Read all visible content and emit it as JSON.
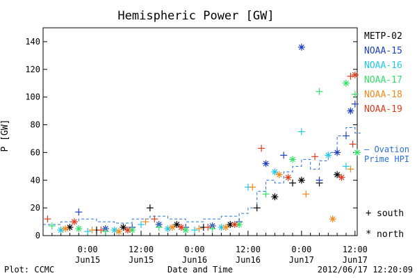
{
  "chart_data": {
    "type": "scatter",
    "title": "Hemispheric Power [GW]",
    "ylabel": "P [GW]",
    "xlabel": "Date and Time",
    "ylim": [
      0,
      150
    ],
    "y_ticks": [
      0,
      20,
      40,
      60,
      80,
      100,
      120,
      140
    ],
    "xlim": [
      "2012-06-14 14:00",
      "2012-06-17 12:30"
    ],
    "x_ticks": [
      {
        "t": "2012-06-15 00:00",
        "line1": "0:00",
        "line2": "Jun15"
      },
      {
        "t": "2012-06-15 12:00",
        "line1": "12:00",
        "line2": "Jun15"
      },
      {
        "t": "2012-06-16 00:00",
        "line1": "0:00",
        "line2": "Jun16"
      },
      {
        "t": "2012-06-16 12:00",
        "line1": "12:00",
        "line2": "Jun16"
      },
      {
        "t": "2012-06-17 00:00",
        "line1": "0:00",
        "line2": "Jun17"
      },
      {
        "t": "2012-06-17 12:00",
        "line1": "12:00",
        "line2": "Jun17"
      }
    ],
    "legend": [
      {
        "name": "METP-02",
        "color": "#000000"
      },
      {
        "name": "NOAA-15",
        "color": "#1f3fbf"
      },
      {
        "name": "NOAA-16",
        "color": "#22c8e8"
      },
      {
        "name": "NOAA-17",
        "color": "#33e066"
      },
      {
        "name": "NOAA-18",
        "color": "#f08a1c"
      },
      {
        "name": "NOAA-19",
        "color": "#e03a1a"
      }
    ],
    "ovation_label": [
      "— Ovation",
      "Prime HPI"
    ],
    "ovation_color": "#2a6fd4",
    "marker_key": [
      {
        "symbol": "+",
        "label": "south"
      },
      {
        "symbol": "*",
        "label": "north"
      }
    ],
    "ovation_series": {
      "name": "Ovation Prime HPI",
      "points": [
        [
          "2012-06-14 14:00",
          8
        ],
        [
          "2012-06-14 18:00",
          10
        ],
        [
          "2012-06-14 22:00",
          12
        ],
        [
          "2012-06-15 02:00",
          10
        ],
        [
          "2012-06-15 06:00",
          9
        ],
        [
          "2012-06-15 10:00",
          12
        ],
        [
          "2012-06-15 14:00",
          14
        ],
        [
          "2012-06-15 18:00",
          12
        ],
        [
          "2012-06-15 22:00",
          10
        ],
        [
          "2012-06-16 02:00",
          12
        ],
        [
          "2012-06-16 06:00",
          14
        ],
        [
          "2012-06-16 10:00",
          16
        ],
        [
          "2012-06-16 12:00",
          20
        ],
        [
          "2012-06-16 14:00",
          32
        ],
        [
          "2012-06-16 16:00",
          40
        ],
        [
          "2012-06-16 18:00",
          38
        ],
        [
          "2012-06-16 20:00",
          46
        ],
        [
          "2012-06-16 22:00",
          50
        ],
        [
          "2012-06-17 00:00",
          55
        ],
        [
          "2012-06-17 02:00",
          48
        ],
        [
          "2012-06-17 04:00",
          54
        ],
        [
          "2012-06-17 06:00",
          60
        ],
        [
          "2012-06-17 08:00",
          72
        ],
        [
          "2012-06-17 10:00",
          78
        ],
        [
          "2012-06-17 12:00",
          74
        ]
      ]
    },
    "series": [
      {
        "name": "METP-02",
        "points": [
          [
            "2012-06-14 20:00",
            6
          ],
          [
            "2012-06-15 02:00",
            4
          ],
          [
            "2012-06-15 08:00",
            6
          ],
          [
            "2012-06-15 14:00",
            20
          ],
          [
            "2012-06-15 20:00",
            8
          ],
          [
            "2012-06-16 02:00",
            6
          ],
          [
            "2012-06-16 08:00",
            8
          ],
          [
            "2012-06-16 14:00",
            20
          ],
          [
            "2012-06-16 18:00",
            28
          ],
          [
            "2012-06-16 22:00",
            38
          ],
          [
            "2012-06-17 00:00",
            40
          ],
          [
            "2012-06-17 04:00",
            38
          ],
          [
            "2012-06-17 08:00",
            44
          ]
        ]
      },
      {
        "name": "NOAA-15",
        "points": [
          [
            "2012-06-14 22:00",
            17
          ],
          [
            "2012-06-15 04:00",
            5
          ],
          [
            "2012-06-15 10:00",
            6
          ],
          [
            "2012-06-15 16:00",
            8
          ],
          [
            "2012-06-15 22:00",
            6
          ],
          [
            "2012-06-16 04:00",
            7
          ],
          [
            "2012-06-16 10:00",
            10
          ],
          [
            "2012-06-16 16:00",
            52
          ],
          [
            "2012-06-16 20:00",
            58
          ],
          [
            "2012-06-17 00:00",
            136
          ],
          [
            "2012-06-17 04:00",
            40
          ],
          [
            "2012-06-17 08:00",
            60
          ],
          [
            "2012-06-17 10:00",
            72
          ],
          [
            "2012-06-17 11:00",
            90
          ],
          [
            "2012-06-17 12:00",
            95
          ]
        ]
      },
      {
        "name": "NOAA-16",
        "points": [
          [
            "2012-06-14 18:00",
            4
          ],
          [
            "2012-06-15 00:00",
            3
          ],
          [
            "2012-06-15 06:00",
            4
          ],
          [
            "2012-06-15 12:00",
            8
          ],
          [
            "2012-06-15 18:00",
            5
          ],
          [
            "2012-06-16 00:00",
            4
          ],
          [
            "2012-06-16 06:00",
            6
          ],
          [
            "2012-06-16 12:00",
            35
          ],
          [
            "2012-06-16 18:00",
            46
          ],
          [
            "2012-06-17 00:00",
            75
          ],
          [
            "2012-06-17 06:00",
            58
          ],
          [
            "2012-06-17 10:00",
            50
          ]
        ]
      },
      {
        "name": "NOAA-17",
        "points": [
          [
            "2012-06-14 16:00",
            7
          ],
          [
            "2012-06-14 22:00",
            5
          ],
          [
            "2012-06-15 04:00",
            3
          ],
          [
            "2012-06-15 10:00",
            4
          ],
          [
            "2012-06-15 16:00",
            6
          ],
          [
            "2012-06-15 22:00",
            4
          ],
          [
            "2012-06-16 04:00",
            5
          ],
          [
            "2012-06-16 10:00",
            8
          ],
          [
            "2012-06-16 16:00",
            30
          ],
          [
            "2012-06-16 22:00",
            55
          ],
          [
            "2012-06-17 04:00",
            104
          ],
          [
            "2012-06-17 10:00",
            110
          ],
          [
            "2012-06-17 12:00",
            102
          ],
          [
            "2012-06-17 12:30",
            60
          ]
        ]
      },
      {
        "name": "NOAA-18",
        "points": [
          [
            "2012-06-14 19:00",
            5
          ],
          [
            "2012-06-15 01:00",
            4
          ],
          [
            "2012-06-15 07:00",
            3
          ],
          [
            "2012-06-15 13:00",
            10
          ],
          [
            "2012-06-15 19:00",
            6
          ],
          [
            "2012-06-16 01:00",
            5
          ],
          [
            "2012-06-16 07:00",
            6
          ],
          [
            "2012-06-16 13:00",
            35
          ],
          [
            "2012-06-16 19:00",
            44
          ],
          [
            "2012-06-17 01:00",
            30
          ],
          [
            "2012-06-17 07:00",
            12
          ],
          [
            "2012-06-17 11:00",
            48
          ]
        ]
      },
      {
        "name": "NOAA-19",
        "points": [
          [
            "2012-06-14 15:00",
            12
          ],
          [
            "2012-06-14 21:00",
            10
          ],
          [
            "2012-06-15 03:00",
            4
          ],
          [
            "2012-06-15 09:00",
            4
          ],
          [
            "2012-06-15 15:00",
            12
          ],
          [
            "2012-06-15 21:00",
            6
          ],
          [
            "2012-06-16 03:00",
            6
          ],
          [
            "2012-06-16 09:00",
            8
          ],
          [
            "2012-06-16 15:00",
            63
          ],
          [
            "2012-06-16 21:00",
            42
          ],
          [
            "2012-06-17 03:00",
            57
          ],
          [
            "2012-06-17 09:00",
            42
          ],
          [
            "2012-06-17 11:00",
            115
          ],
          [
            "2012-06-17 12:00",
            116
          ],
          [
            "2012-06-17 11:30",
            66
          ]
        ]
      }
    ]
  },
  "footer": {
    "plot_label": "Plot: CCMC",
    "timestamp": "2012/06/17 12:20:09"
  }
}
